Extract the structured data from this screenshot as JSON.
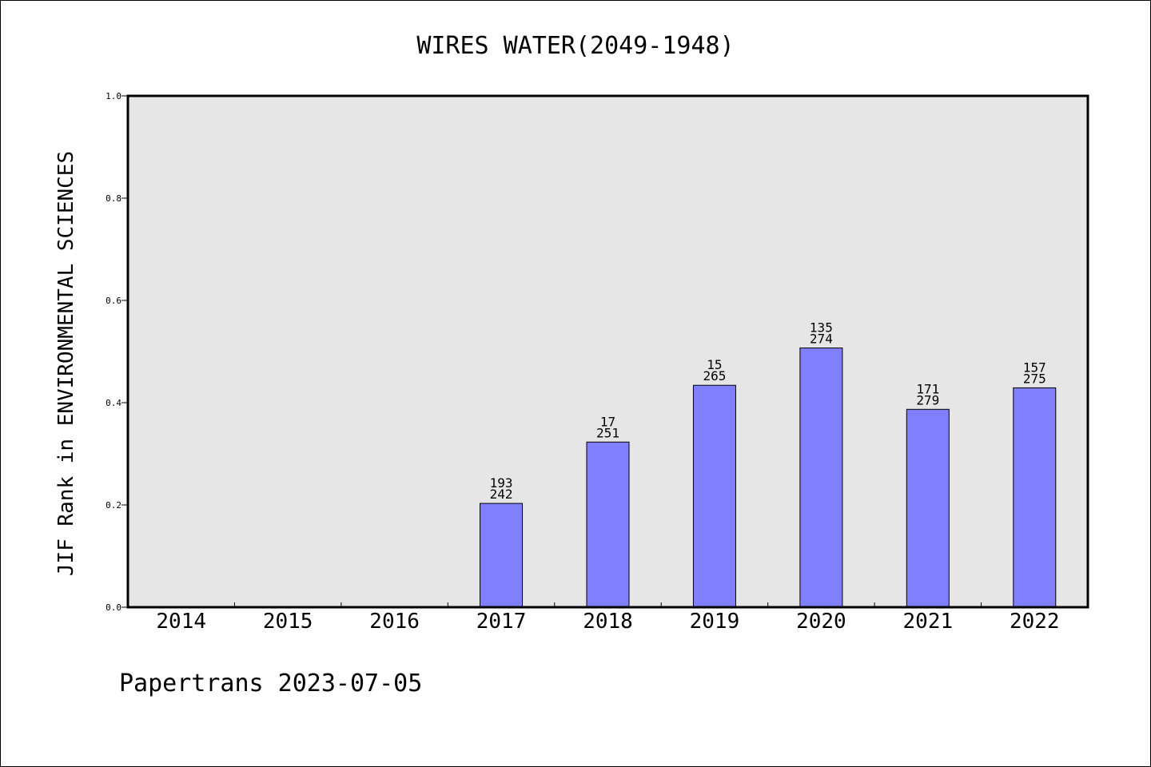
{
  "chart_data": {
    "type": "bar",
    "title": "WIRES WATER(2049-1948)",
    "xlabel": "",
    "ylabel": "JIF Rank in ENVIRONMENTAL SCIENCES",
    "ylim": [
      0,
      1.0
    ],
    "yticks": [
      "0.0",
      "0.2",
      "0.4",
      "0.6",
      "0.8",
      "1.0"
    ],
    "categories": [
      "2014",
      "2015",
      "2016",
      "2017",
      "2018",
      "2019",
      "2020",
      "2021",
      "2022"
    ],
    "values": [
      null,
      null,
      null,
      0.203,
      0.323,
      0.434,
      0.507,
      0.387,
      0.429
    ],
    "labels_top": [
      "",
      "",
      "",
      "193",
      "17",
      "15",
      "135",
      "171",
      "157"
    ],
    "labels_bottom": [
      "",
      "",
      "",
      "242",
      "251",
      "265",
      "274",
      "279",
      "275"
    ],
    "grid": false,
    "legend": "none",
    "colors": {
      "bar": "#8080ff",
      "plot_bg": "#e6e6e6",
      "frame": "#000000"
    }
  },
  "footer": "Papertrans 2023-07-05"
}
